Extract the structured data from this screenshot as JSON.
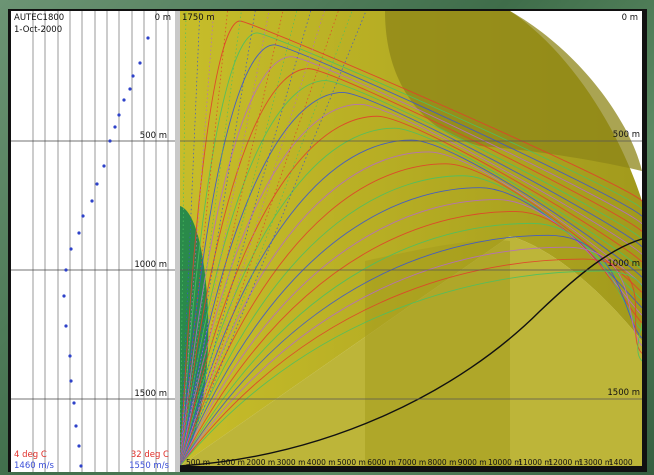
{
  "profile": {
    "site_label": "AUTEC1800",
    "date_label": "1-Oct-2000",
    "depth_labels": [
      "0 m",
      "500 m",
      "1000 m",
      "1500 m"
    ],
    "temp_min": "4 deg C",
    "temp_max": "32 deg C",
    "speed_min": "1460 m/s",
    "speed_max": "1550 m/s"
  },
  "raytrace": {
    "depth_labels": [
      "1750 m",
      "0 m",
      "500 m",
      "1000 m",
      "1500 m"
    ],
    "range_labels": [
      "500 m",
      "1000 m",
      "2000 m",
      "3000 m",
      "4000 m",
      "5000 m",
      "6000 m",
      "7000 m",
      "8000 m",
      "9000 m",
      "10000 m",
      "11000 m",
      "12000 m",
      "13000 m",
      "14000"
    ]
  },
  "colors": {
    "fill_olive": "#b0a920",
    "shadow_olive": "#8c8418",
    "green_zone": "#2a8a4a",
    "ray_red": "#e0402a",
    "ray_green": "#4cc060",
    "ray_blue": "#3a55d0",
    "ray_black": "#111111",
    "profile_dot": "#2e42c9"
  }
}
